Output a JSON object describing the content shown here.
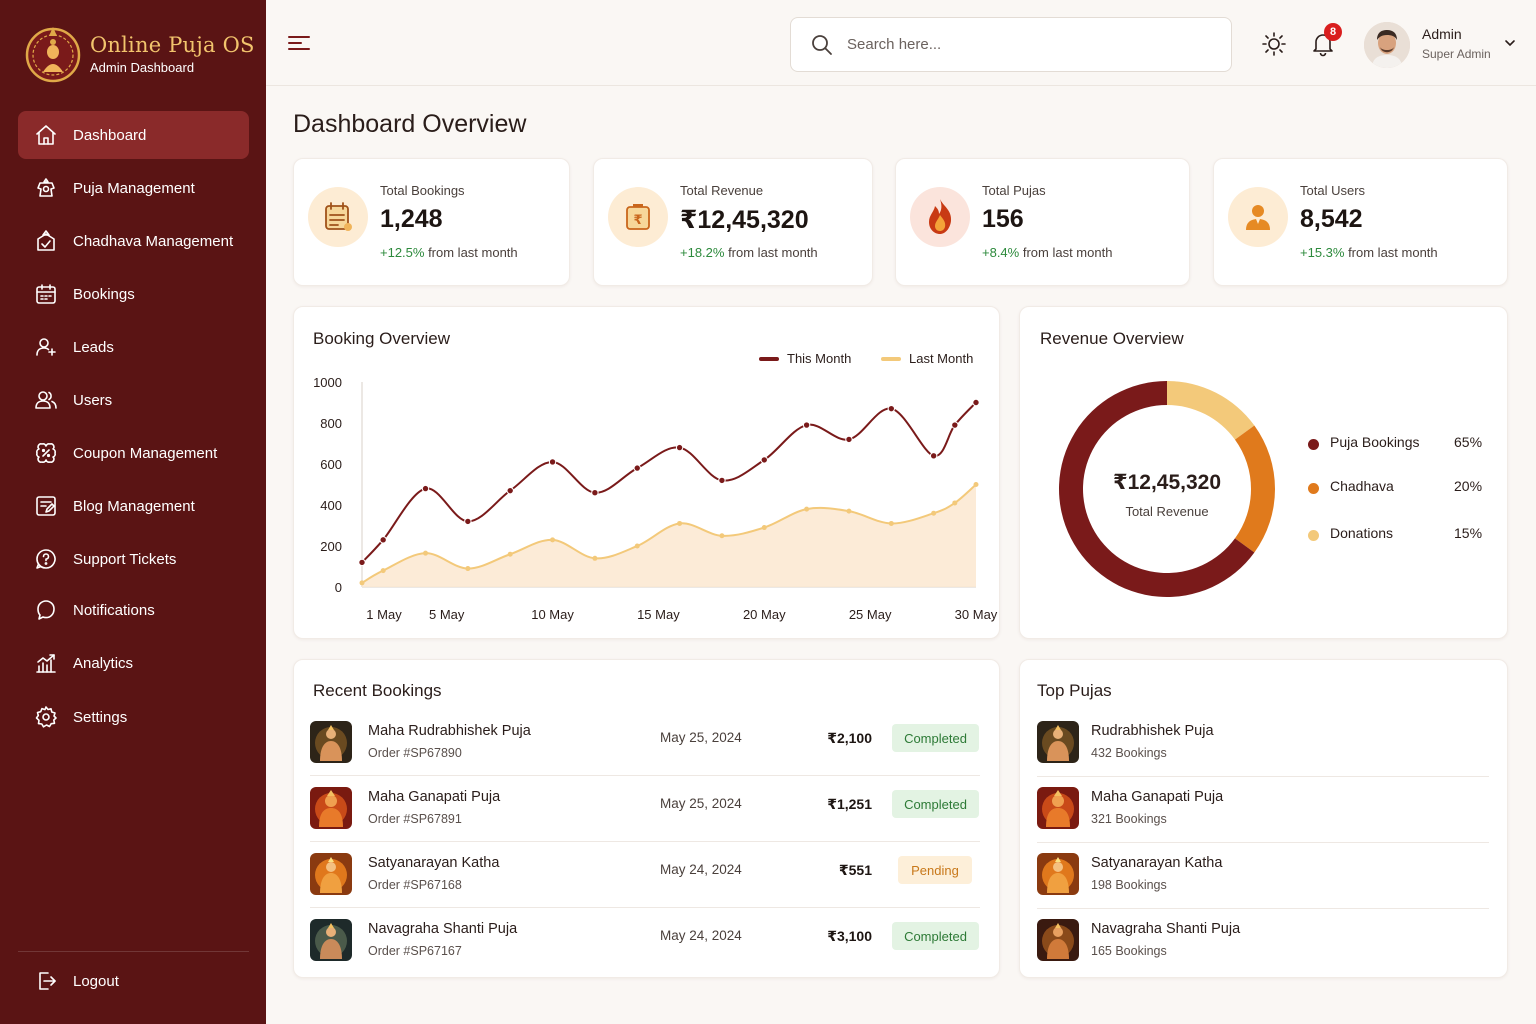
{
  "brand": {
    "title": "Online Puja OS",
    "subtitle": "Admin Dashboard"
  },
  "sidebar": {
    "items": [
      {
        "label": "Dashboard",
        "icon": "home-icon",
        "active": true
      },
      {
        "label": "Puja Management",
        "icon": "puja-icon"
      },
      {
        "label": "Chadhava Management",
        "icon": "offering-icon"
      },
      {
        "label": "Bookings",
        "icon": "calendar-icon"
      },
      {
        "label": "Leads",
        "icon": "leads-icon"
      },
      {
        "label": "Users",
        "icon": "users-icon"
      },
      {
        "label": "Coupon Management",
        "icon": "coupon-icon"
      },
      {
        "label": "Blog Management",
        "icon": "blog-icon"
      },
      {
        "label": "Support Tickets",
        "icon": "support-icon"
      },
      {
        "label": "Notifications",
        "icon": "notification-icon"
      },
      {
        "label": "Analytics",
        "icon": "analytics-icon"
      },
      {
        "label": "Settings",
        "icon": "settings-icon"
      }
    ],
    "logout": "Logout"
  },
  "header": {
    "search_placeholder": "Search here...",
    "notification_count": "8",
    "user_name": "Admin",
    "user_role": "Super Admin"
  },
  "page_title": "Dashboard Overview",
  "stats": [
    {
      "label": "Total Bookings",
      "value": "1,248",
      "change": "+12.5%",
      "suffix": " from last month",
      "icon": "bookings-icon"
    },
    {
      "label": "Total Revenue",
      "value": "₹12,45,320",
      "change": "+18.2%",
      "suffix": " from last month",
      "icon": "revenue-icon"
    },
    {
      "label": "Total Pujas",
      "value": "156",
      "change": "+8.4%",
      "suffix": " from last month",
      "icon": "flame-icon"
    },
    {
      "label": "Total Users",
      "value": "8,542",
      "change": "+15.3%",
      "suffix": " from last month",
      "icon": "user-icon"
    }
  ],
  "booking_overview": {
    "title": "Booking Overview"
  },
  "revenue_overview": {
    "title": "Revenue Overview",
    "center_value": "₹12,45,320",
    "center_label": "Total Revenue"
  },
  "chart_data": [
    {
      "type": "area",
      "title": "Booking Overview",
      "x": [
        1,
        2,
        4,
        6,
        8,
        10,
        12,
        14,
        16,
        18,
        20,
        22,
        24,
        26,
        28,
        29,
        30
      ],
      "x_ticks": [
        1,
        5,
        10,
        15,
        20,
        25,
        30
      ],
      "x_tick_labels": [
        "1 May",
        "5 May",
        "10 May",
        "15 May",
        "20 May",
        "25 May",
        "30 May"
      ],
      "y_ticks": [
        0,
        200,
        400,
        600,
        800,
        1000
      ],
      "ylim": [
        0,
        1000
      ],
      "legend_position": "top-right",
      "series": [
        {
          "name": "This Month",
          "color": "#7a1a1a",
          "values": [
            120,
            230,
            480,
            320,
            470,
            610,
            460,
            580,
            680,
            520,
            620,
            790,
            720,
            870,
            640,
            790,
            900
          ]
        },
        {
          "name": "Last Month",
          "color": "#f3c97a",
          "values": [
            20,
            80,
            165,
            90,
            160,
            230,
            140,
            200,
            310,
            250,
            290,
            380,
            370,
            310,
            360,
            410,
            500
          ]
        }
      ]
    },
    {
      "type": "pie",
      "title": "Revenue Overview",
      "categories": [
        "Puja Bookings",
        "Chadhava",
        "Donations"
      ],
      "values": [
        65,
        20,
        15
      ],
      "value_labels": [
        "65%",
        "20%",
        "15%"
      ],
      "colors": [
        "#7a1a1a",
        "#e07a1c",
        "#f3c97a"
      ]
    }
  ],
  "recent_bookings": {
    "title": "Recent Bookings",
    "rows": [
      {
        "name": "Maha Rudrabhishek Puja",
        "order": "Order #SP67890",
        "date": "May 25, 2024",
        "amount": "₹2,100",
        "status": "Completed"
      },
      {
        "name": "Maha Ganapati Puja",
        "order": "Order #SP67891",
        "date": "May 25, 2024",
        "amount": "₹1,251",
        "status": "Completed"
      },
      {
        "name": "Satyanarayan Katha",
        "order": "Order #SP67168",
        "date": "May 24, 2024",
        "amount": "₹551",
        "status": "Pending"
      },
      {
        "name": "Navagraha Shanti Puja",
        "order": "Order #SP67167",
        "date": "May 24, 2024",
        "amount": "₹3,100",
        "status": "Completed"
      }
    ]
  },
  "top_pujas": {
    "title": "Top Pujas",
    "rows": [
      {
        "name": "Rudrabhishek Puja",
        "count": "432 Bookings"
      },
      {
        "name": "Maha Ganapati Puja",
        "count": "321 Bookings"
      },
      {
        "name": "Satyanarayan Katha",
        "count": "198 Bookings"
      },
      {
        "name": "Navagraha Shanti Puja",
        "count": "165 Bookings"
      }
    ]
  },
  "colors": {
    "sidebar": "#5a1414",
    "accent": "#7a1a1a",
    "gold": "#f2c46d",
    "success": "#2d8a3c",
    "pending": "#c8781a"
  }
}
